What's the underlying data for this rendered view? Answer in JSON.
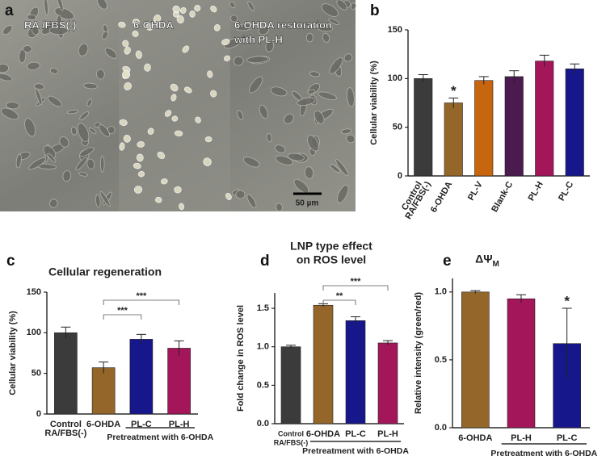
{
  "image_panel": {
    "panel_label": "a",
    "labels": [
      [
        "RA /FBS(-)"
      ],
      [
        "6-OHDA"
      ],
      [
        "6-OHDA restoration",
        "with PL-H"
      ]
    ],
    "scale_bar": "50 µm"
  },
  "chart_data": [
    {
      "type": "bar",
      "panel_label": "b",
      "ylabel": "Cellular viability (%)",
      "categories": [
        [
          "Control",
          "RA/FBS(-)"
        ],
        [
          "6-OHDA"
        ],
        [
          "PL-V"
        ],
        [
          "Blank-C"
        ],
        [
          "PL-H"
        ],
        [
          "PL-C"
        ]
      ],
      "values": [
        100,
        75,
        98,
        102,
        118,
        110
      ],
      "errors": [
        4,
        5,
        4,
        6,
        6,
        5
      ],
      "colors": [
        "#3b3b3b",
        "#94662a",
        "#c8650f",
        "#4b1a4f",
        "#a3175a",
        "#17178c"
      ],
      "ylim": [
        0,
        150
      ],
      "yticks": [
        0,
        50,
        100,
        150
      ],
      "significance": [
        null,
        "*",
        null,
        null,
        null,
        null
      ]
    },
    {
      "type": "bar",
      "panel_label": "c",
      "title": [
        "Cellular regeneration"
      ],
      "ylabel": "Cellular viability (%)",
      "categories": [
        [
          "Control",
          "RA/FBS(-)"
        ],
        [
          "6-OHDA"
        ],
        [
          "PL-C"
        ],
        [
          "PL-H"
        ]
      ],
      "values": [
        100,
        57,
        92,
        81
      ],
      "errors": [
        7,
        7,
        6,
        9
      ],
      "colors": [
        "#3b3b3b",
        "#94662a",
        "#17178c",
        "#a3175a"
      ],
      "ylim": [
        0,
        150
      ],
      "yticks": [
        0,
        50,
        100,
        150
      ],
      "brackets": [
        {
          "from": "6-OHDA",
          "to": "PL-C",
          "label": "***"
        },
        {
          "from": "6-OHDA",
          "to": "PL-H",
          "label": "***"
        }
      ],
      "group": {
        "label": "Pretreatment with 6-OHDA",
        "from": "PL-C",
        "to": "PL-H"
      }
    },
    {
      "type": "bar",
      "panel_label": "d",
      "title": [
        "LNP type effect",
        "on ROS level"
      ],
      "ylabel": "Fold change in ROS level",
      "categories": [
        [
          "Control",
          "RA/FBS(-)"
        ],
        [
          "6-OHDA"
        ],
        [
          "PL-C"
        ],
        [
          "PL-H"
        ]
      ],
      "values": [
        1.0,
        1.54,
        1.34,
        1.05
      ],
      "errors": [
        0.02,
        0.02,
        0.05,
        0.03
      ],
      "colors": [
        "#3b3b3b",
        "#94662a",
        "#17178c",
        "#a3175a"
      ],
      "ylim": [
        0,
        1.7
      ],
      "yticks": [
        {
          "value": 0,
          "label": "0.0"
        },
        0.5,
        {
          "value": 1,
          "label": "1.0"
        },
        1.5
      ],
      "brackets": [
        {
          "from": "6-OHDA",
          "to": "PL-C",
          "label": "**"
        },
        {
          "from": "6-OHDA",
          "to": "PL-H",
          "label": "***"
        }
      ],
      "group": {
        "label": "Pretreatment with 6-OHDA",
        "from": "6-OHDA",
        "to": "PL-H"
      }
    },
    {
      "type": "bar",
      "panel_label": "e",
      "title": [
        "ΔΨ"
      ],
      "title_subscript": "M",
      "ylabel": "Relative intensity (green/red)",
      "categories": [
        [
          "6-OHDA"
        ],
        [
          "PL-H"
        ],
        [
          "PL-C"
        ]
      ],
      "values": [
        1.0,
        0.95,
        0.62
      ],
      "errors": [
        0.01,
        0.03,
        0.26
      ],
      "colors": [
        "#94662a",
        "#a3175a",
        "#17178c"
      ],
      "ylim": [
        0,
        1.1
      ],
      "yticks": [
        {
          "value": 0,
          "label": "0.0"
        },
        0.5,
        {
          "value": 1,
          "label": "1.0"
        }
      ],
      "significance": [
        null,
        null,
        "*"
      ],
      "group": {
        "label": "Pretreatment with 6-OHDA",
        "from": "PL-H",
        "to": "PL-C"
      }
    }
  ]
}
